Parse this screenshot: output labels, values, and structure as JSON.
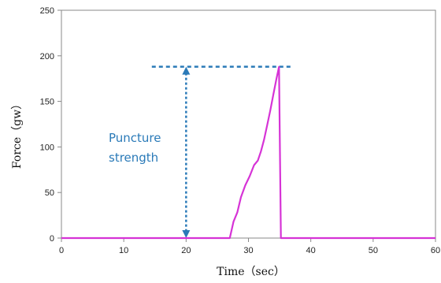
{
  "chart_data": {
    "type": "line",
    "xlabel": "Time（sec）",
    "ylabel": "Force（gw）",
    "xlim": [
      0,
      60
    ],
    "ylim": [
      0,
      250
    ],
    "xticks": [
      0,
      10,
      20,
      30,
      40,
      50,
      60
    ],
    "yticks": [
      0,
      50,
      100,
      150,
      200,
      250
    ],
    "grid": false,
    "legend": "none",
    "series": [
      {
        "color": "#d633d6",
        "x": [
          0,
          27.0,
          27.6,
          28.2,
          28.8,
          29.5,
          30.2,
          30.9,
          31.5,
          32.0,
          32.5,
          33.0,
          33.5,
          34.0,
          34.5,
          34.9,
          35.2,
          60
        ],
        "y": [
          0,
          0,
          18,
          28,
          45,
          58,
          68,
          80,
          85,
          95,
          108,
          124,
          140,
          158,
          175,
          188,
          0,
          0
        ]
      }
    ],
    "annotations": [
      {
        "text_lines": [
          "Puncture",
          "strength"
        ],
        "color": "#2a7ab8",
        "reference_line": {
          "y": 188,
          "x_from": 14.5,
          "x_to": 37
        },
        "arrow": {
          "x": 20,
          "y_from": 0,
          "y_to": 188
        }
      }
    ]
  }
}
